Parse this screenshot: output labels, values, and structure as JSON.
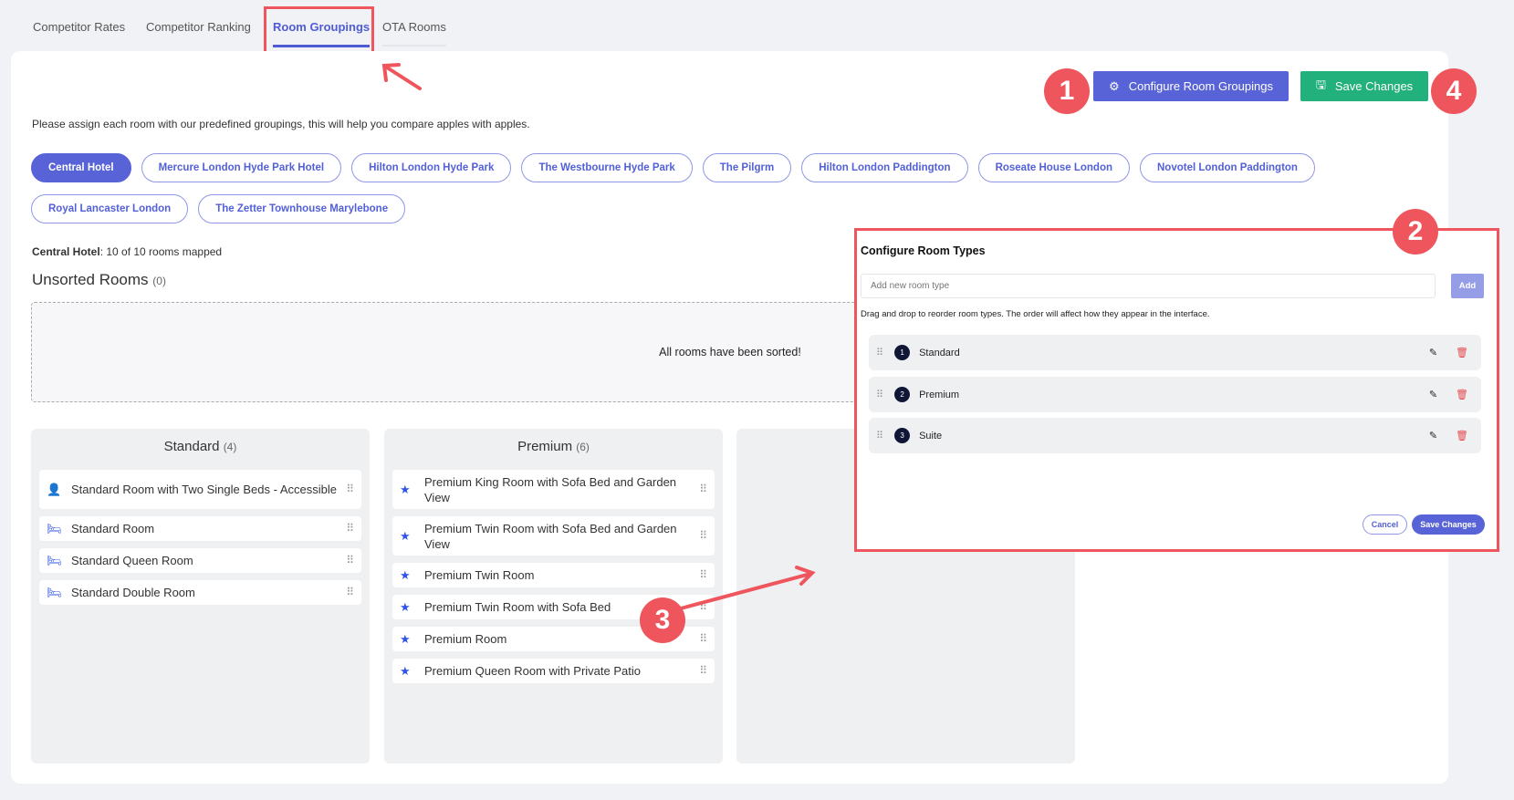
{
  "tabs": [
    {
      "label": "Competitor Rates"
    },
    {
      "label": "Competitor Ranking"
    },
    {
      "label": "Room Groupings",
      "active": true
    },
    {
      "label": "OTA Rooms"
    }
  ],
  "toolbar": {
    "configure_label": "Configure Room Groupings",
    "save_label": "Save Changes"
  },
  "description": "Please assign each room with our predefined groupings, this will help you compare apples with apples.",
  "hotels": [
    "Central Hotel",
    "Mercure London Hyde Park Hotel",
    "Hilton London Hyde Park",
    "The Westbourne Hyde Park",
    "The Pilgrm",
    "Hilton London Paddington",
    "Roseate House London",
    "Novotel London Paddington",
    "Royal Lancaster London",
    "The Zetter Townhouse Marylebone"
  ],
  "status": {
    "hotel": "Central Hotel",
    "text": ": 10 of 10 rooms mapped"
  },
  "unsorted": {
    "title": "Unsorted Rooms",
    "count": "(0)",
    "empty_text": "All rooms have been sorted!"
  },
  "groups": [
    {
      "name": "Standard",
      "count": "(4)",
      "rooms": [
        {
          "label": "Standard Room with Two Single Beds - Accessible",
          "icon": "person-icon"
        },
        {
          "label": "Standard Room",
          "icon": "bed-icon"
        },
        {
          "label": "Standard Queen Room",
          "icon": "bed-icon"
        },
        {
          "label": "Standard Double Room",
          "icon": "bed-icon"
        }
      ]
    },
    {
      "name": "Premium",
      "count": "(6)",
      "rooms": [
        {
          "label": "Premium King Room with Sofa Bed and Garden View",
          "icon": "star-icon"
        },
        {
          "label": "Premium Twin Room with Sofa Bed and Garden View",
          "icon": "star-icon"
        },
        {
          "label": "Premium Twin Room",
          "icon": "star-icon"
        },
        {
          "label": "Premium Twin Room with Sofa Bed",
          "icon": "star-icon"
        },
        {
          "label": "Premium Room",
          "icon": "star-icon"
        },
        {
          "label": "Premium Queen Room with Private Patio",
          "icon": "star-icon"
        }
      ]
    }
  ],
  "modal": {
    "title": "Configure Room Types",
    "input_placeholder": "Add new room type",
    "add_label": "Add",
    "hint": "Drag and drop to reorder room types. The order will affect how they appear in the interface.",
    "types": [
      {
        "num": "1",
        "name": "Standard"
      },
      {
        "num": "2",
        "name": "Premium"
      },
      {
        "num": "3",
        "name": "Suite"
      }
    ],
    "cancel_label": "Cancel",
    "save_label": "Save Changes"
  },
  "annotations": [
    "1",
    "2",
    "3",
    "4"
  ],
  "colors": {
    "accent": "#5763d6",
    "save": "#22b07d",
    "annotation": "#ef555d"
  }
}
